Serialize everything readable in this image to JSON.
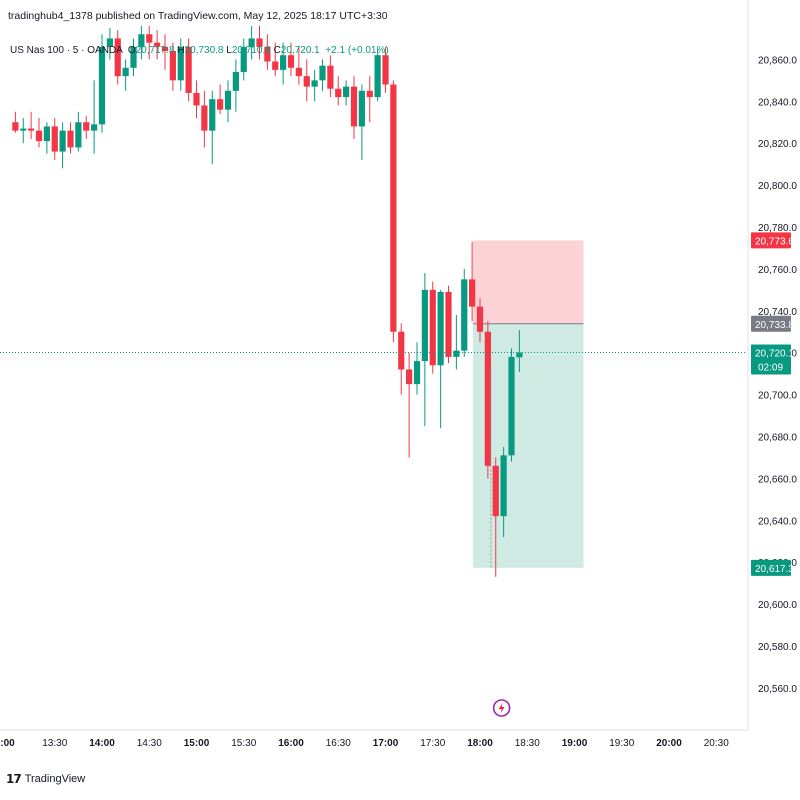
{
  "header": {
    "publish_text": "tradinghub4_1378 published on TradingView.com, May 12, 2025 18:17 UTC+3:30"
  },
  "legend": {
    "symbol": "US Nas 100 · 5 · OANDA",
    "open_label": "O",
    "open": "20,717.8",
    "high_label": "H",
    "high": "20,730.8",
    "low_label": "L",
    "low": "20,710.8",
    "close_label": "C",
    "close": "20,720.1",
    "change": "+2.1 (+0.01%)"
  },
  "price_axis": {
    "ticks": [
      "20,860.0",
      "20,840.0",
      "20,820.0",
      "20,800.0",
      "20,780.0",
      "20,760.0",
      "20,740.0",
      "20,720.0",
      "20,700.0",
      "20,680.0",
      "20,660.0",
      "20,640.0",
      "20,620.0",
      "20,600.0",
      "20,580.0",
      "20,560.0"
    ],
    "tags": [
      {
        "label": "20,773.6",
        "value": 20773.6,
        "color": "#f23645"
      },
      {
        "label": "20,733.8",
        "value": 20733.8,
        "color": "#787b86"
      },
      {
        "label": "20,720.1",
        "sub": "02:09",
        "value": 20720.1,
        "color": "#089981"
      },
      {
        "label": "20,617.3",
        "value": 20617.3,
        "color": "#089981"
      }
    ]
  },
  "time_axis": {
    "labels": [
      ":00",
      "13:30",
      "14:00",
      "14:30",
      "15:00",
      "15:30",
      "16:00",
      "16:30",
      "17:00",
      "17:30",
      "18:00",
      "18:30",
      "19:00",
      "19:30",
      "20:00",
      "20:30"
    ],
    "bold": [
      ":00",
      "14:00",
      "15:00",
      "16:00",
      "17:00",
      "18:00",
      "19:00",
      "20:00"
    ]
  },
  "colors": {
    "up": "#089981",
    "down": "#f23645",
    "stop_zone": "#fbd3d6",
    "target_zone": "#cfeae3",
    "current_price_line": "#089981"
  },
  "position_tool": {
    "entry": 20733.8,
    "stop": 20773.6,
    "target": 20617.3,
    "start_time": "18:00",
    "end_time": "19:00"
  },
  "chart_data": {
    "type": "candlestick",
    "symbol": "US Nas 100",
    "interval_minutes": 5,
    "ylim": [
      20550,
      20880
    ],
    "candles": [
      {
        "t": "13:05",
        "o": 20830,
        "h": 20835,
        "l": 20825,
        "c": 20826
      },
      {
        "t": "13:10",
        "o": 20826,
        "h": 20832,
        "l": 20820,
        "c": 20827
      },
      {
        "t": "13:15",
        "o": 20827,
        "h": 20835,
        "l": 20822,
        "c": 20826
      },
      {
        "t": "13:20",
        "o": 20826,
        "h": 20832,
        "l": 20818,
        "c": 20821
      },
      {
        "t": "13:25",
        "o": 20821,
        "h": 20830,
        "l": 20815,
        "c": 20828
      },
      {
        "t": "13:30",
        "o": 20828,
        "h": 20832,
        "l": 20812,
        "c": 20816
      },
      {
        "t": "13:35",
        "o": 20816,
        "h": 20830,
        "l": 20808,
        "c": 20826
      },
      {
        "t": "13:40",
        "o": 20826,
        "h": 20830,
        "l": 20815,
        "c": 20818
      },
      {
        "t": "13:45",
        "o": 20818,
        "h": 20835,
        "l": 20816,
        "c": 20830
      },
      {
        "t": "13:50",
        "o": 20830,
        "h": 20833,
        "l": 20822,
        "c": 20826
      },
      {
        "t": "13:55",
        "o": 20826,
        "h": 20850,
        "l": 20815,
        "c": 20829
      },
      {
        "t": "14:00",
        "o": 20829,
        "h": 20872,
        "l": 20825,
        "c": 20866
      },
      {
        "t": "14:05",
        "o": 20866,
        "h": 20875,
        "l": 20860,
        "c": 20870
      },
      {
        "t": "14:10",
        "o": 20870,
        "h": 20874,
        "l": 20848,
        "c": 20852
      },
      {
        "t": "14:15",
        "o": 20852,
        "h": 20860,
        "l": 20845,
        "c": 20856
      },
      {
        "t": "14:20",
        "o": 20856,
        "h": 20870,
        "l": 20852,
        "c": 20866
      },
      {
        "t": "14:25",
        "o": 20866,
        "h": 20876,
        "l": 20860,
        "c": 20872
      },
      {
        "t": "14:30",
        "o": 20872,
        "h": 20876,
        "l": 20860,
        "c": 20868
      },
      {
        "t": "14:35",
        "o": 20868,
        "h": 20874,
        "l": 20860,
        "c": 20866
      },
      {
        "t": "14:40",
        "o": 20866,
        "h": 20872,
        "l": 20855,
        "c": 20864
      },
      {
        "t": "14:45",
        "o": 20864,
        "h": 20868,
        "l": 20845,
        "c": 20850
      },
      {
        "t": "14:50",
        "o": 20850,
        "h": 20870,
        "l": 20845,
        "c": 20866
      },
      {
        "t": "14:55",
        "o": 20866,
        "h": 20870,
        "l": 20840,
        "c": 20844
      },
      {
        "t": "15:00",
        "o": 20844,
        "h": 20850,
        "l": 20832,
        "c": 20838
      },
      {
        "t": "15:05",
        "o": 20838,
        "h": 20845,
        "l": 20818,
        "c": 20826
      },
      {
        "t": "15:10",
        "o": 20826,
        "h": 20845,
        "l": 20810,
        "c": 20841
      },
      {
        "t": "15:15",
        "o": 20841,
        "h": 20848,
        "l": 20834,
        "c": 20836
      },
      {
        "t": "15:20",
        "o": 20836,
        "h": 20850,
        "l": 20830,
        "c": 20845
      },
      {
        "t": "15:25",
        "o": 20845,
        "h": 20860,
        "l": 20835,
        "c": 20854
      },
      {
        "t": "15:30",
        "o": 20854,
        "h": 20870,
        "l": 20850,
        "c": 20866
      },
      {
        "t": "15:35",
        "o": 20866,
        "h": 20876,
        "l": 20860,
        "c": 20870
      },
      {
        "t": "15:40",
        "o": 20870,
        "h": 20876,
        "l": 20860,
        "c": 20866
      },
      {
        "t": "15:45",
        "o": 20866,
        "h": 20872,
        "l": 20855,
        "c": 20859
      },
      {
        "t": "15:50",
        "o": 20859,
        "h": 20868,
        "l": 20852,
        "c": 20855
      },
      {
        "t": "15:55",
        "o": 20855,
        "h": 20868,
        "l": 20848,
        "c": 20862
      },
      {
        "t": "16:00",
        "o": 20862,
        "h": 20868,
        "l": 20852,
        "c": 20856
      },
      {
        "t": "16:05",
        "o": 20856,
        "h": 20866,
        "l": 20848,
        "c": 20852
      },
      {
        "t": "16:10",
        "o": 20852,
        "h": 20860,
        "l": 20840,
        "c": 20847
      },
      {
        "t": "16:15",
        "o": 20847,
        "h": 20855,
        "l": 20840,
        "c": 20850
      },
      {
        "t": "16:20",
        "o": 20850,
        "h": 20860,
        "l": 20845,
        "c": 20857
      },
      {
        "t": "16:25",
        "o": 20857,
        "h": 20862,
        "l": 20842,
        "c": 20846
      },
      {
        "t": "16:30",
        "o": 20846,
        "h": 20852,
        "l": 20838,
        "c": 20842
      },
      {
        "t": "16:35",
        "o": 20842,
        "h": 20850,
        "l": 20838,
        "c": 20847
      },
      {
        "t": "16:40",
        "o": 20847,
        "h": 20852,
        "l": 20822,
        "c": 20828
      },
      {
        "t": "16:45",
        "o": 20828,
        "h": 20848,
        "l": 20812,
        "c": 20845
      },
      {
        "t": "16:50",
        "o": 20845,
        "h": 20852,
        "l": 20830,
        "c": 20842
      },
      {
        "t": "16:55",
        "o": 20842,
        "h": 20865,
        "l": 20840,
        "c": 20862
      },
      {
        "t": "17:00",
        "o": 20862,
        "h": 20866,
        "l": 20844,
        "c": 20848
      },
      {
        "t": "17:05",
        "o": 20848,
        "h": 20850,
        "l": 20725,
        "c": 20730
      },
      {
        "t": "17:10",
        "o": 20730,
        "h": 20734,
        "l": 20700,
        "c": 20712
      },
      {
        "t": "17:15",
        "o": 20712,
        "h": 20720,
        "l": 20670,
        "c": 20705
      },
      {
        "t": "17:20",
        "o": 20705,
        "h": 20725,
        "l": 20700,
        "c": 20716
      },
      {
        "t": "17:25",
        "o": 20716,
        "h": 20758,
        "l": 20685,
        "c": 20750
      },
      {
        "t": "17:30",
        "o": 20750,
        "h": 20754,
        "l": 20710,
        "c": 20714
      },
      {
        "t": "17:35",
        "o": 20714,
        "h": 20750,
        "l": 20684,
        "c": 20749
      },
      {
        "t": "17:40",
        "o": 20749,
        "h": 20752,
        "l": 20715,
        "c": 20718
      },
      {
        "t": "17:45",
        "o": 20718,
        "h": 20738,
        "l": 20712,
        "c": 20721
      },
      {
        "t": "17:50",
        "o": 20721,
        "h": 20760,
        "l": 20718,
        "c": 20755
      },
      {
        "t": "17:55",
        "o": 20755,
        "h": 20773,
        "l": 20735,
        "c": 20742
      },
      {
        "t": "18:00",
        "o": 20742,
        "h": 20746,
        "l": 20725,
        "c": 20730
      },
      {
        "t": "18:05",
        "o": 20730,
        "h": 20735,
        "l": 20660,
        "c": 20666
      },
      {
        "t": "18:10",
        "o": 20666,
        "h": 20670,
        "l": 20613,
        "c": 20642
      },
      {
        "t": "18:15",
        "o": 20642,
        "h": 20675,
        "l": 20632,
        "c": 20671
      },
      {
        "t": "18:20",
        "o": 20671,
        "h": 20722,
        "l": 20668,
        "c": 20718
      },
      {
        "t": "18:25",
        "o": 20717.8,
        "h": 20730.8,
        "l": 20710.8,
        "c": 20720.1
      }
    ]
  }
}
